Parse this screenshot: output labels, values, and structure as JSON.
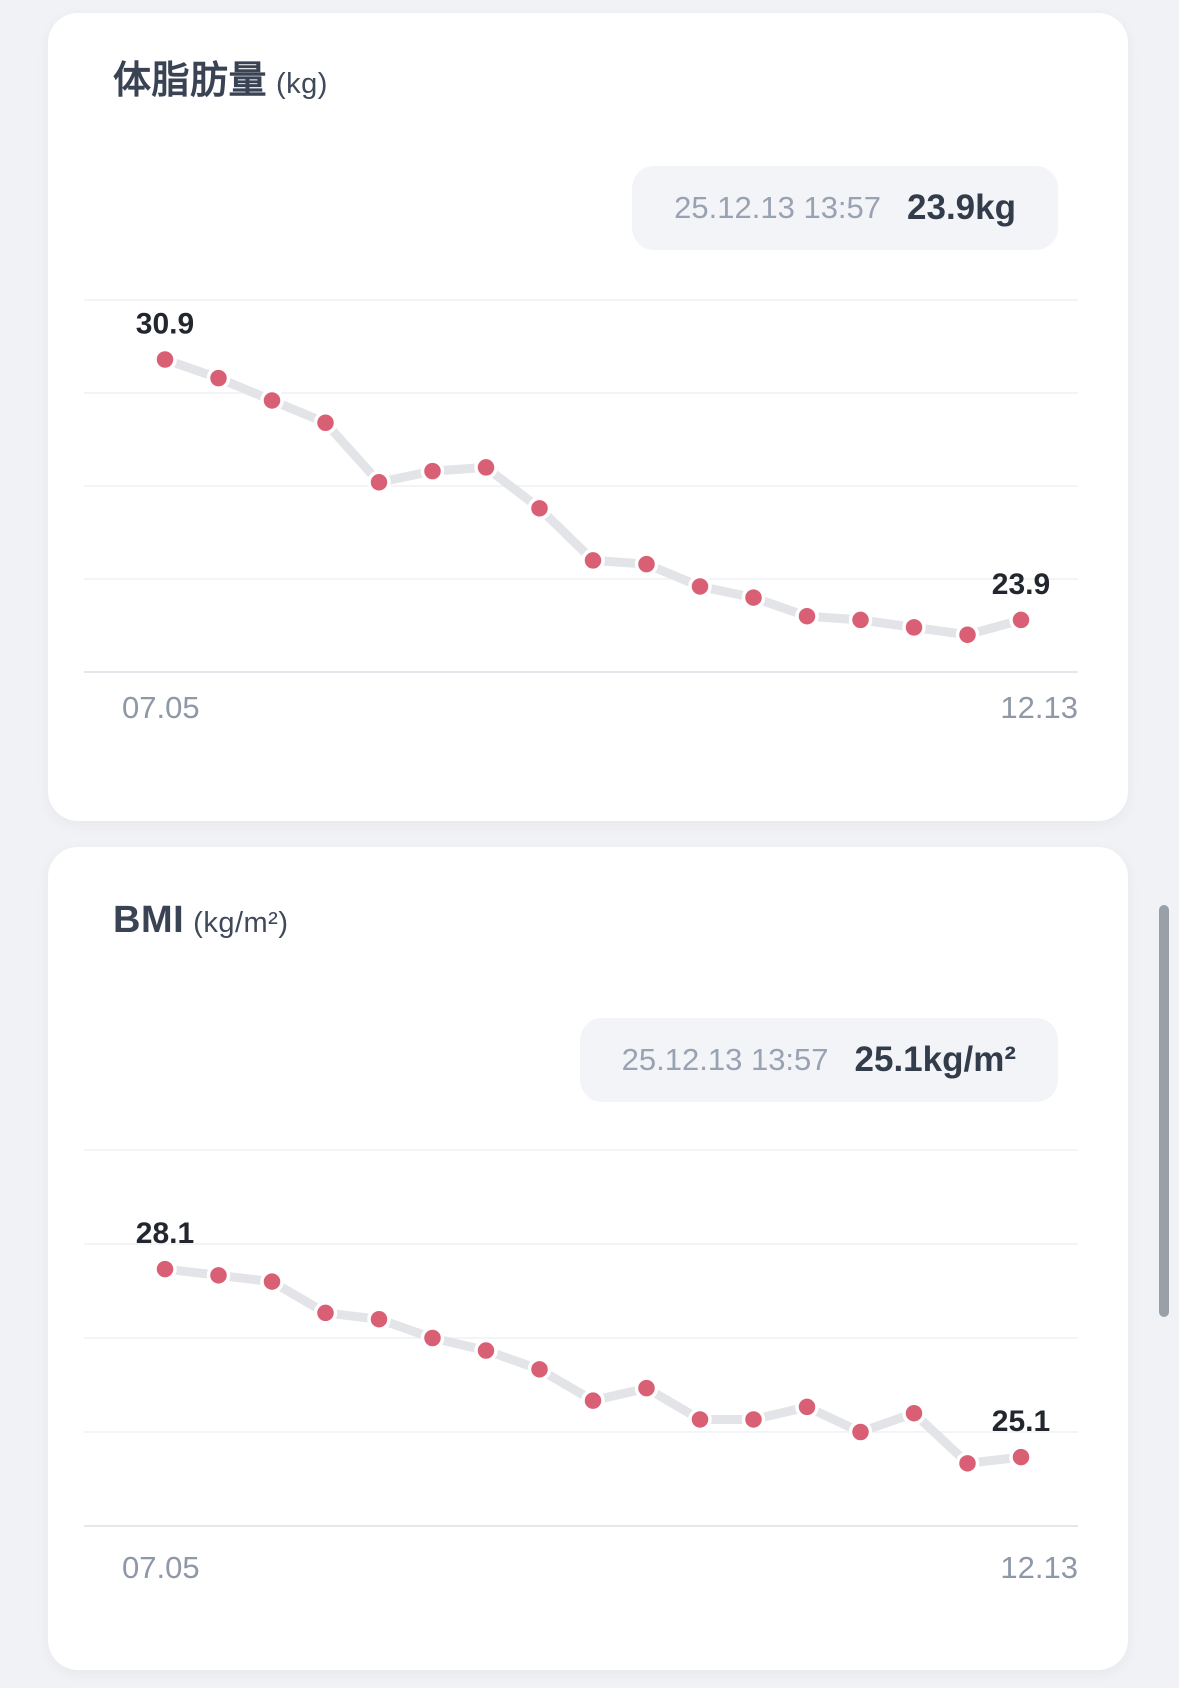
{
  "page": {
    "background_color": "#f1f2f5",
    "card_color": "#ffffff",
    "accent_color": "#d95f74",
    "connector_color": "#e2e4e8",
    "grid_color": "#eff1f4",
    "scrollbar_color": "#9aa0a8"
  },
  "cards": [
    {
      "id": "body-fat",
      "title": "体脂肪量",
      "unit": "(kg)",
      "tooltip": {
        "datetime": "25.12.13 13:57",
        "value": "23.9kg"
      }
    },
    {
      "id": "bmi",
      "title": "BMI",
      "unit": "(kg/m²)",
      "tooltip": {
        "datetime": "25.12.13 13:57",
        "value": "25.1kg/m²"
      }
    }
  ],
  "chart_data": [
    {
      "type": "line",
      "title": "体脂肪量 (kg)",
      "ylabel": "体脂肪量 (kg)",
      "x_tick_labels": [
        "07.05",
        "12.13"
      ],
      "values": [
        30.9,
        30.4,
        29.8,
        29.2,
        27.6,
        27.9,
        28.0,
        26.9,
        25.5,
        25.4,
        24.8,
        24.5,
        24.0,
        23.9,
        23.7,
        23.5,
        23.9
      ],
      "point_labels": {
        "first": "30.9",
        "last": "23.9"
      },
      "ylim": [
        22.5,
        32.5
      ],
      "gridline_values": [
        32.5,
        30.0,
        27.5,
        25.0,
        22.5
      ],
      "grid": true,
      "legend": false,
      "marker_color": "#d95f74",
      "line_color": "#e2e4e8"
    },
    {
      "type": "line",
      "title": "BMI (kg/m²)",
      "ylabel": "BMI (kg/m²)",
      "x_tick_labels": [
        "07.05",
        "12.13"
      ],
      "values": [
        28.1,
        28.0,
        27.9,
        27.4,
        27.3,
        27.0,
        26.8,
        26.5,
        26.0,
        26.2,
        25.7,
        25.7,
        25.9,
        25.5,
        25.8,
        25.0,
        25.1
      ],
      "point_labels": {
        "first": "28.1",
        "last": "25.1"
      },
      "ylim": [
        24.0,
        30.0
      ],
      "gridline_values": [
        30.0,
        28.5,
        27.0,
        25.5,
        24.0
      ],
      "grid": true,
      "legend": false,
      "marker_color": "#d95f74",
      "line_color": "#e2e4e8"
    }
  ]
}
